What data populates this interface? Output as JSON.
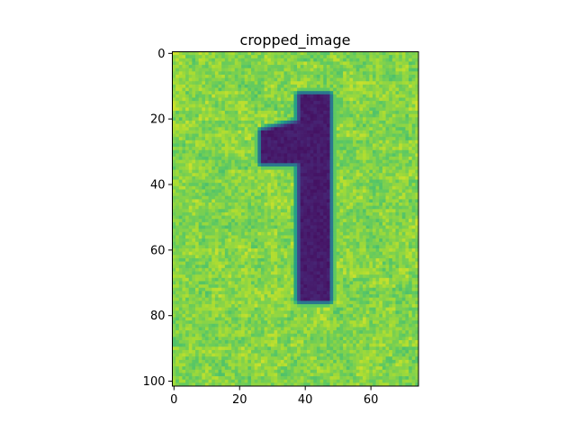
{
  "chart_data": {
    "type": "heatmap",
    "title": "cropped_image",
    "xlabel": "",
    "ylabel": "",
    "image_shape": [
      102,
      75
    ],
    "xlim": [
      -0.5,
      74.5
    ],
    "ylim": [
      101.5,
      -0.5
    ],
    "x_ticks": [
      0,
      20,
      40,
      60
    ],
    "y_ticks": [
      0,
      20,
      40,
      60,
      80,
      100
    ],
    "grid": false,
    "legend": "none",
    "colormap": "viridis",
    "content": {
      "depicts": "digit 1",
      "background_value": 0.93,
      "stroke_value": 0.05,
      "digit_stem": {
        "x": [
          38.5,
          47
        ],
        "y": [
          13,
          75
        ]
      },
      "digit_flag": {
        "x": [
          27,
          39
        ],
        "y": [
          21,
          33
        ]
      }
    },
    "colors": {
      "background": "#e2e418",
      "background_alt": "#c8e020",
      "edge": "#1f9e89",
      "stroke": "#3b1c75",
      "stroke_dark": "#2f0f5c"
    }
  }
}
